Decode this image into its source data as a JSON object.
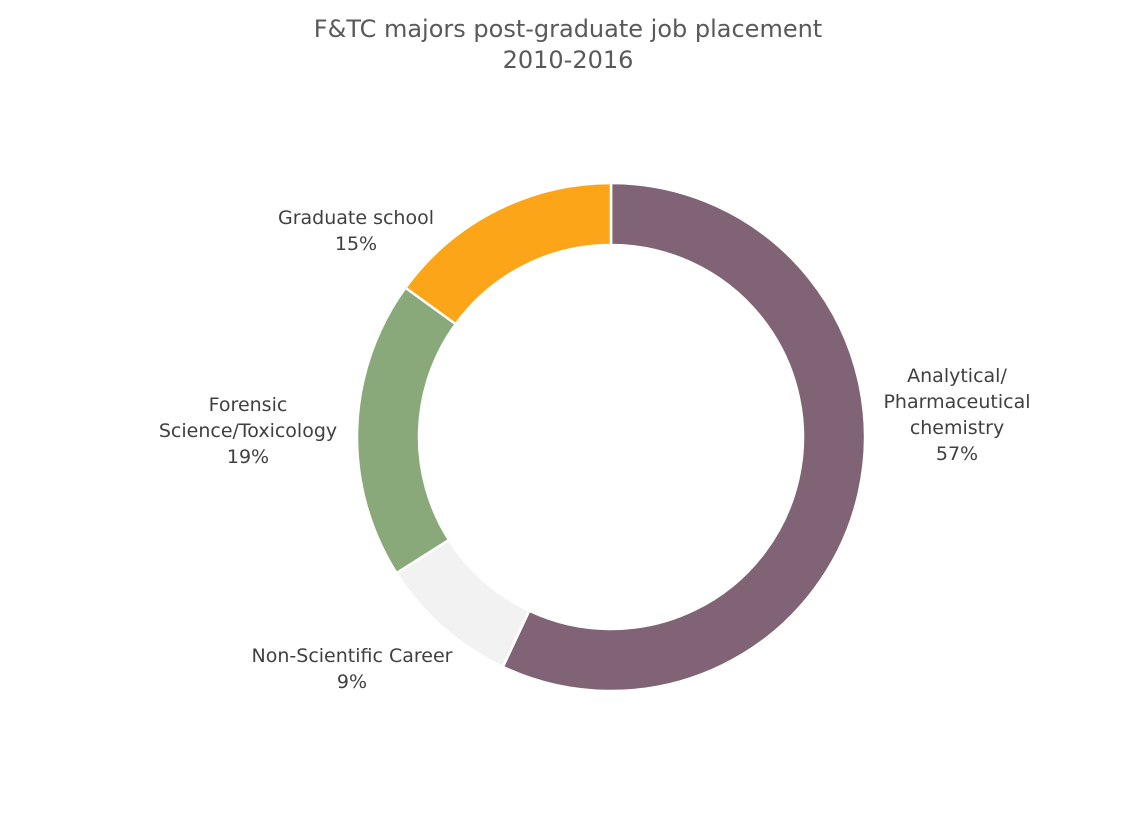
{
  "chart_data": {
    "type": "pie",
    "variant": "donut",
    "title": "F&TC majors post-graduate job placement",
    "subtitle": "2010-2016",
    "slices": [
      {
        "label": "Analytical/ Pharmaceutical chemistry",
        "label_lines": [
          "Analytical/",
          "Pharmaceutical",
          "chemistry"
        ],
        "value": 57,
        "value_text": "57%",
        "color": "#806374"
      },
      {
        "label": "Non-Scientific Career",
        "label_lines": [
          "Non-Scientific Career"
        ],
        "value": 9,
        "value_text": "9%",
        "color": "#f2f2f2"
      },
      {
        "label": "Forensic Science/Toxicology",
        "label_lines": [
          "Forensic",
          "Science/Toxicology"
        ],
        "value": 19,
        "value_text": "19%",
        "color": "#8aa97b"
      },
      {
        "label": "Graduate school",
        "label_lines": [
          "Graduate school"
        ],
        "value": 15,
        "value_text": "15%",
        "color": "#fca518"
      }
    ],
    "legend": "none"
  }
}
